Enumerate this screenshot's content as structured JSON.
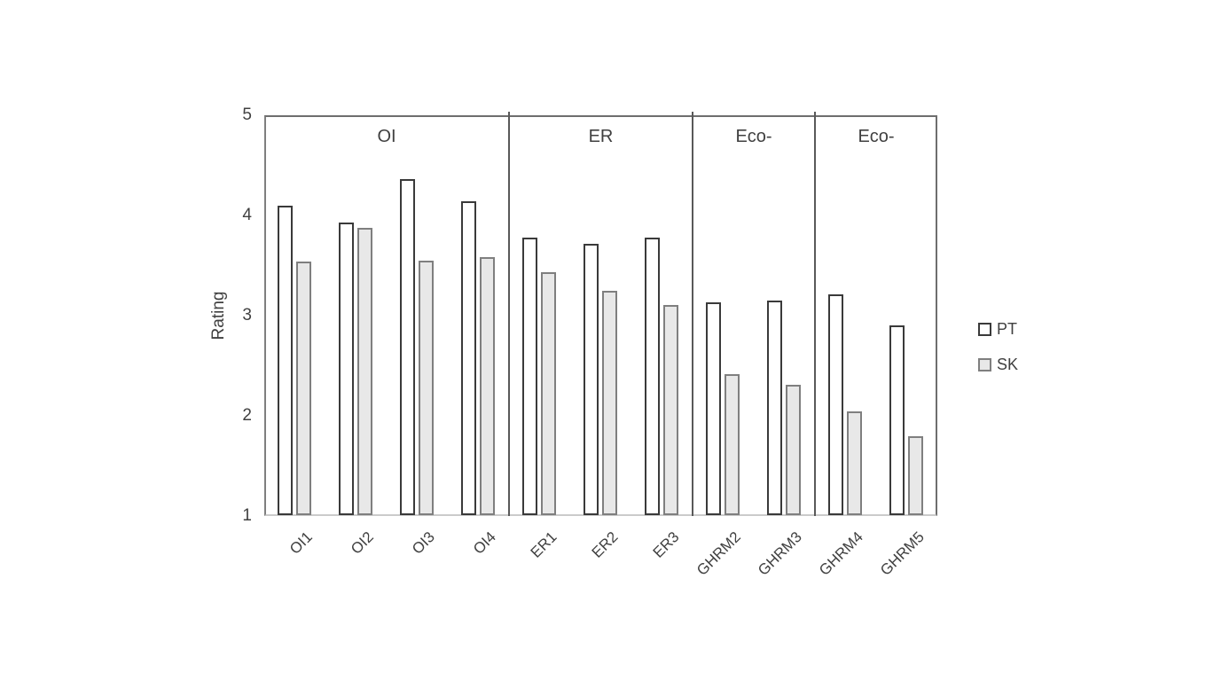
{
  "chart_data": {
    "type": "bar",
    "title": "",
    "ylabel": "Rating",
    "xlabel": "",
    "ylim": [
      1,
      5
    ],
    "yticks": [
      1,
      2,
      3,
      4,
      5
    ],
    "grid": false,
    "legend_position": "right",
    "categories": [
      "OI1",
      "OI2",
      "OI3",
      "OI4",
      "ER1",
      "ER2",
      "ER3",
      "GHRM2",
      "GHRM3",
      "GHRM4",
      "GHRM5"
    ],
    "series": [
      {
        "name": "PT",
        "fill": "#ffffff",
        "border": "#3a3a3a",
        "values": [
          4.1,
          3.93,
          4.36,
          4.14,
          3.78,
          3.72,
          3.78,
          3.13,
          3.15,
          3.21,
          2.9
        ]
      },
      {
        "name": "SK",
        "fill": "#e8e8e8",
        "border": "#7f7f7f",
        "values": [
          3.54,
          3.88,
          3.55,
          3.58,
          3.43,
          3.25,
          3.11,
          2.42,
          2.31,
          2.04,
          1.8
        ]
      }
    ],
    "sections": [
      {
        "label": "OI",
        "start": 0,
        "end": 4
      },
      {
        "label": "ER",
        "start": 4,
        "end": 7
      },
      {
        "label": "Eco-",
        "start": 7,
        "end": 9
      },
      {
        "label": "Eco-",
        "start": 9,
        "end": 11
      }
    ],
    "colors": {
      "text": "#404040",
      "frame": "#6e6e6e",
      "bottom_axis": "#cbcbcb",
      "divider": "#595959"
    }
  }
}
